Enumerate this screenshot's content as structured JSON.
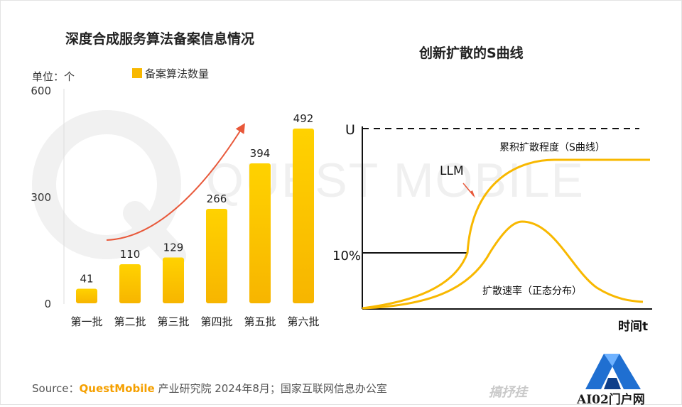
{
  "left_title": "深度合成服务算法备案信息情况",
  "right_title": "创新扩散的S曲线",
  "source": {
    "label": "Source：",
    "brand": "QuestMobile",
    "text": " 产业研究院 2024年8月；国家互联网信息办公室"
  },
  "watermark": "QUEST MOBILE",
  "logo_text": "AI02门户网",
  "faint_mark": "搞抒挂",
  "colors": {
    "bar_top": "#ffd000",
    "bar_bottom": "#f8b800",
    "arrow": "#e8583a",
    "curve": "#f8b800",
    "axis": "#111111"
  },
  "chart_data": [
    {
      "type": "bar",
      "title": "深度合成服务算法备案信息情况",
      "unit_label": "单位：个",
      "legend": "备案算法数量",
      "categories": [
        "第一批",
        "第二批",
        "第三批",
        "第四批",
        "第五批",
        "第六批"
      ],
      "values": [
        41,
        110,
        129,
        266,
        394,
        492
      ],
      "yticks": [
        "0",
        "300",
        "600"
      ],
      "ylim": [
        0,
        600
      ]
    },
    {
      "type": "line",
      "title": "创新扩散的S曲线",
      "y_top_label": "U",
      "y_mid_label": "10%",
      "x_label": "时间t",
      "annotation": "LLM",
      "series": [
        {
          "name": "累积扩散程度（S曲线）"
        },
        {
          "name": "扩散速率（正态分布）"
        }
      ]
    }
  ]
}
